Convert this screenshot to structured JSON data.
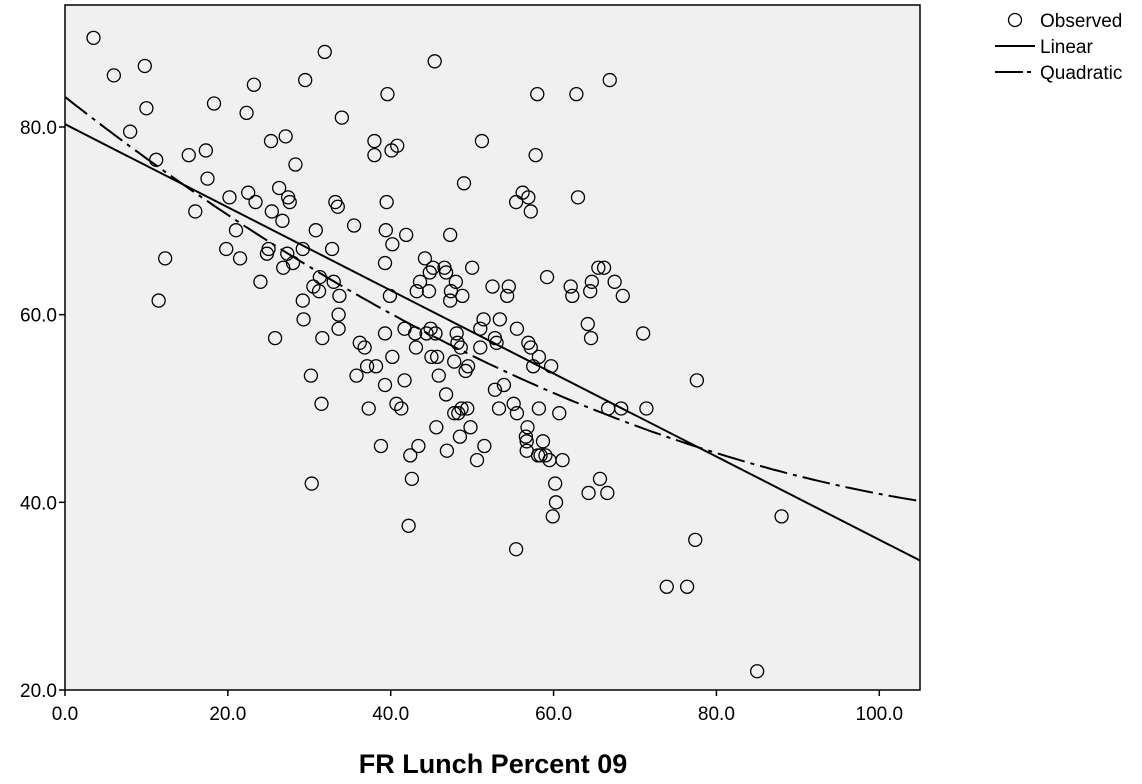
{
  "chart_data": {
    "type": "scatter",
    "title": "",
    "xlabel": "FR Lunch Percent 09",
    "ylabel": "",
    "xlim": [
      0,
      105
    ],
    "ylim": [
      20,
      93
    ],
    "x_ticks": [
      0,
      20,
      40,
      60,
      80,
      100
    ],
    "x_tick_labels": [
      "0.0",
      "20.0",
      "40.0",
      "60.0",
      "80.0",
      "100.0"
    ],
    "y_ticks": [
      20,
      40,
      60,
      80
    ],
    "y_tick_labels": [
      "20.0",
      "40.0",
      "60.0",
      "80.0"
    ],
    "grid": false,
    "background_color": "#f0f0f0",
    "legend_position": "top-right",
    "legend": [
      {
        "label": "Observed",
        "marker": "circle"
      },
      {
        "label": "Linear",
        "line": "solid"
      },
      {
        "label": "Quadratic",
        "line": "dash-dot"
      }
    ],
    "observed": {
      "name": "Observed",
      "points": [
        [
          3.5,
          89.5
        ],
        [
          6,
          85.5
        ],
        [
          8,
          79.5
        ],
        [
          9.8,
          86.5
        ],
        [
          10,
          82
        ],
        [
          11.2,
          76.5
        ],
        [
          11.5,
          61.5
        ],
        [
          12.3,
          66
        ],
        [
          15.2,
          77
        ],
        [
          16,
          71
        ],
        [
          17.3,
          77.5
        ],
        [
          17.5,
          74.5
        ],
        [
          18.3,
          82.5
        ],
        [
          19.8,
          67
        ],
        [
          20.2,
          72.5
        ],
        [
          21,
          69
        ],
        [
          21.5,
          66
        ],
        [
          22.3,
          81.5
        ],
        [
          22.5,
          73
        ],
        [
          23.2,
          84.5
        ],
        [
          23.4,
          72
        ],
        [
          24,
          63.5
        ],
        [
          24.8,
          66.5
        ],
        [
          25,
          67
        ],
        [
          25.3,
          78.5
        ],
        [
          25.4,
          71
        ],
        [
          25.8,
          57.5
        ],
        [
          26.3,
          73.5
        ],
        [
          26.7,
          70
        ],
        [
          26.8,
          65
        ],
        [
          27.1,
          79
        ],
        [
          27.3,
          66.5
        ],
        [
          27.4,
          72.5
        ],
        [
          27.6,
          72
        ],
        [
          28,
          65.5
        ],
        [
          28.3,
          76
        ],
        [
          29.2,
          61.5
        ],
        [
          29.3,
          59.5
        ],
        [
          29.5,
          85
        ],
        [
          29.2,
          67
        ],
        [
          30.2,
          53.5
        ],
        [
          30.3,
          42
        ],
        [
          30.5,
          63
        ],
        [
          30.8,
          69
        ],
        [
          31.2,
          62.5
        ],
        [
          31.3,
          64
        ],
        [
          31.5,
          50.5
        ],
        [
          31.6,
          57.5
        ],
        [
          31.9,
          88
        ],
        [
          32.8,
          67
        ],
        [
          33,
          63.5
        ],
        [
          33.2,
          72
        ],
        [
          33.5,
          71.5
        ],
        [
          33.6,
          58.5
        ],
        [
          33.6,
          60
        ],
        [
          33.7,
          62
        ],
        [
          34,
          81
        ],
        [
          35.5,
          69.5
        ],
        [
          35.8,
          53.5
        ],
        [
          36.2,
          57
        ],
        [
          36.8,
          56.5
        ],
        [
          37.1,
          54.5
        ],
        [
          37.3,
          50
        ],
        [
          38,
          78.5
        ],
        [
          38,
          77
        ],
        [
          38.2,
          54.5
        ],
        [
          38.8,
          46
        ],
        [
          39.3,
          52.5
        ],
        [
          39.3,
          58
        ],
        [
          39.3,
          65.5
        ],
        [
          39.4,
          69
        ],
        [
          39.5,
          72
        ],
        [
          39.6,
          83.5
        ],
        [
          39.9,
          62
        ],
        [
          40.1,
          77.5
        ],
        [
          40.2,
          67.5
        ],
        [
          40.2,
          55.5
        ],
        [
          40.7,
          50.5
        ],
        [
          40.8,
          78
        ],
        [
          41.3,
          50
        ],
        [
          41.7,
          58.5
        ],
        [
          41.7,
          53
        ],
        [
          41.9,
          68.5
        ],
        [
          42.2,
          37.5
        ],
        [
          42.4,
          45
        ],
        [
          42.6,
          42.5
        ],
        [
          43,
          58
        ],
        [
          43.1,
          56.5
        ],
        [
          43.2,
          62.5
        ],
        [
          43.4,
          46
        ],
        [
          43.6,
          63.5
        ],
        [
          44.2,
          66
        ],
        [
          44.4,
          58
        ],
        [
          44.7,
          62.5
        ],
        [
          44.8,
          64.5
        ],
        [
          44.9,
          58.5
        ],
        [
          45,
          55.5
        ],
        [
          45.2,
          65
        ],
        [
          45.4,
          87
        ],
        [
          45.5,
          58
        ],
        [
          45.6,
          48
        ],
        [
          45.7,
          55.5
        ],
        [
          45.9,
          53.5
        ],
        [
          46.6,
          65
        ],
        [
          46.8,
          64.5
        ],
        [
          46.8,
          51.5
        ],
        [
          46.9,
          45.5
        ],
        [
          47.3,
          61.5
        ],
        [
          47.3,
          68.5
        ],
        [
          47.4,
          62.5
        ],
        [
          47.8,
          55
        ],
        [
          47.8,
          49.5
        ],
        [
          48,
          63.5
        ],
        [
          48.1,
          58
        ],
        [
          48.2,
          57
        ],
        [
          48.3,
          49.5
        ],
        [
          48.5,
          47
        ],
        [
          48.6,
          56.5
        ],
        [
          48.7,
          50
        ],
        [
          48.8,
          62
        ],
        [
          49,
          74
        ],
        [
          49.2,
          54
        ],
        [
          49.4,
          50
        ],
        [
          49.5,
          54.5
        ],
        [
          49.8,
          48
        ],
        [
          50,
          65
        ],
        [
          50.6,
          44.5
        ],
        [
          51,
          56.5
        ],
        [
          51,
          58.5
        ],
        [
          51.2,
          78.5
        ],
        [
          51.4,
          59.5
        ],
        [
          51.5,
          46
        ],
        [
          52.5,
          63
        ],
        [
          52.8,
          57.5
        ],
        [
          52.8,
          52
        ],
        [
          53,
          57
        ],
        [
          53.3,
          50
        ],
        [
          53.4,
          59.5
        ],
        [
          53.9,
          52.5
        ],
        [
          54.3,
          62
        ],
        [
          54.5,
          63
        ],
        [
          55.1,
          50.5
        ],
        [
          55.4,
          35
        ],
        [
          55.4,
          72
        ],
        [
          55.5,
          58.5
        ],
        [
          55.5,
          49.5
        ],
        [
          56.2,
          73
        ],
        [
          56.6,
          47
        ],
        [
          56.7,
          46.5
        ],
        [
          56.7,
          45.5
        ],
        [
          56.8,
          48
        ],
        [
          56.9,
          57
        ],
        [
          56.9,
          72.5
        ],
        [
          57.2,
          56.5
        ],
        [
          57.2,
          71
        ],
        [
          57.5,
          54.5
        ],
        [
          57.8,
          77
        ],
        [
          58,
          83.5
        ],
        [
          58.1,
          45
        ],
        [
          58.2,
          55.5
        ],
        [
          58.2,
          50
        ],
        [
          58.4,
          45
        ],
        [
          58.7,
          46.5
        ],
        [
          59,
          45
        ],
        [
          59.2,
          64
        ],
        [
          59.5,
          44.5
        ],
        [
          59.7,
          54.5
        ],
        [
          59.9,
          38.5
        ],
        [
          60.2,
          42
        ],
        [
          60.3,
          40
        ],
        [
          60.7,
          49.5
        ],
        [
          61.1,
          44.5
        ],
        [
          62.1,
          63
        ],
        [
          62.3,
          62
        ],
        [
          62.8,
          83.5
        ],
        [
          63,
          72.5
        ],
        [
          64.2,
          59
        ],
        [
          64.3,
          41
        ],
        [
          64.5,
          62.5
        ],
        [
          64.6,
          57.5
        ],
        [
          64.7,
          63.5
        ],
        [
          65.5,
          65
        ],
        [
          65.7,
          42.5
        ],
        [
          66.2,
          65
        ],
        [
          66.6,
          41
        ],
        [
          66.7,
          50
        ],
        [
          66.9,
          85
        ],
        [
          67.5,
          63.5
        ],
        [
          68.3,
          50
        ],
        [
          68.5,
          62
        ],
        [
          71,
          58
        ],
        [
          71.4,
          50
        ],
        [
          73.9,
          31
        ],
        [
          76.4,
          31
        ],
        [
          77.4,
          36
        ],
        [
          77.6,
          53
        ],
        [
          85,
          22
        ],
        [
          88,
          38.5
        ]
      ]
    },
    "fits": [
      {
        "name": "Linear",
        "line": "solid",
        "equation_points": [
          [
            0,
            80.3
          ],
          [
            105,
            33.8
          ]
        ]
      },
      {
        "name": "Quadratic",
        "line": "dash-dot",
        "a": 83.2,
        "b": -0.68,
        "c": 0.00257
      }
    ]
  }
}
